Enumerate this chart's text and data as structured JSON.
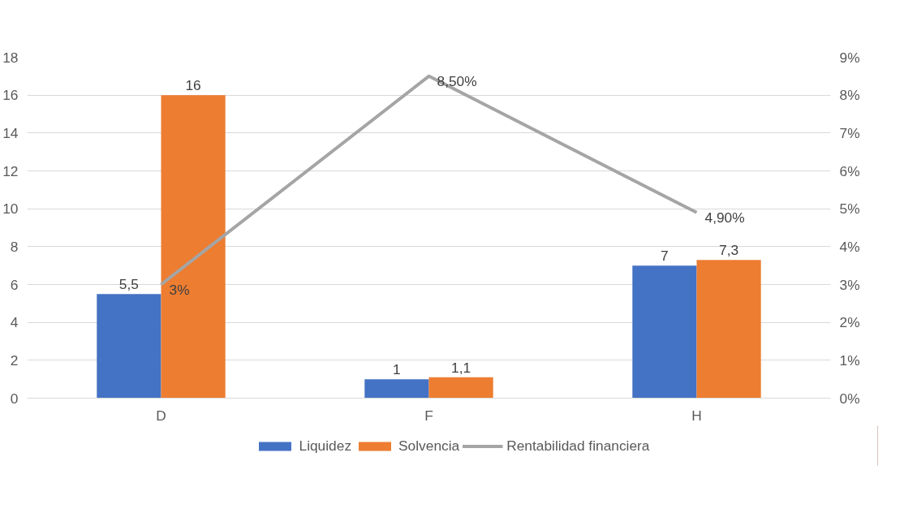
{
  "chart_data": {
    "type": "bar",
    "categories": [
      "D",
      "F",
      "H"
    ],
    "series": [
      {
        "name": "Liquidez",
        "color": "#4472c4",
        "values": [
          5.5,
          1,
          7
        ],
        "value_labels": [
          "5,5",
          "1",
          "7"
        ]
      },
      {
        "name": "Solvencia",
        "color": "#ed7d31",
        "values": [
          16,
          1.1,
          7.3
        ],
        "value_labels": [
          "16",
          "1,1",
          "7,3"
        ]
      },
      {
        "name": "Rentabilidad financiera",
        "type": "line",
        "axis": "y2",
        "color": "#a5a5a5",
        "values": [
          3,
          8.5,
          4.9
        ],
        "value_labels": [
          "3%",
          "8,50%",
          "4,90%"
        ]
      }
    ],
    "ylim": [
      0,
      18
    ],
    "yticks": [
      0,
      2,
      4,
      6,
      8,
      10,
      12,
      14,
      16,
      18
    ],
    "y2lim": [
      0,
      9
    ],
    "y2ticks": [
      {
        "value": 0,
        "label": "0%"
      },
      {
        "value": 1,
        "label": "1%"
      },
      {
        "value": 2,
        "label": "2%"
      },
      {
        "value": 3,
        "label": "3%"
      },
      {
        "value": 4,
        "label": "4%"
      },
      {
        "value": 5,
        "label": "5%"
      },
      {
        "value": 6,
        "label": "6%"
      },
      {
        "value": 7,
        "label": "7%"
      },
      {
        "value": 8,
        "label": "8%"
      },
      {
        "value": 9,
        "label": "9%"
      }
    ],
    "grid": "y",
    "legend": "bottom",
    "marker": "none",
    "line_style": "solid"
  }
}
